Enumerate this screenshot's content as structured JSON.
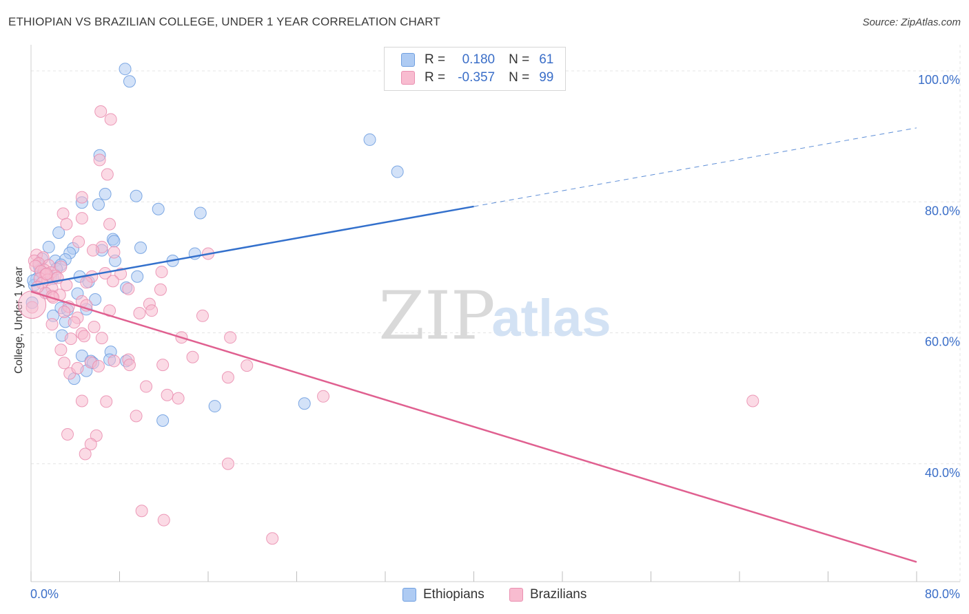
{
  "title": "ETHIOPIAN VS BRAZILIAN COLLEGE, UNDER 1 YEAR CORRELATION CHART",
  "source": "Source: ZipAtlas.com",
  "watermark": {
    "zip": "ZIP",
    "atlas": "atlas"
  },
  "legend": {
    "r_label": "R =",
    "n_label": "N =",
    "rows": [
      {
        "name": "Ethiopians",
        "r": "0.180",
        "n": "61",
        "fill": "#aecbf3",
        "stroke": "#6f9fe0"
      },
      {
        "name": "Brazilians",
        "r": "-0.357",
        "n": "99",
        "fill": "#f8bcd0",
        "stroke": "#ea8fb0"
      }
    ]
  },
  "chart_data": {
    "type": "scatter",
    "title": "ETHIOPIAN VS BRAZILIAN COLLEGE, UNDER 1 YEAR CORRELATION CHART",
    "xlabel": "",
    "ylabel": "College, Under 1 year",
    "xlim": [
      0,
      80
    ],
    "ylim": [
      22,
      104
    ],
    "x_tick_labels": [
      "0.0%",
      "80.0%"
    ],
    "y_ticks": [
      40,
      60,
      80,
      100
    ],
    "y_tick_labels": [
      "40.0%",
      "60.0%",
      "80.0%",
      "100.0%"
    ],
    "grid": true,
    "series": [
      {
        "name": "Ethiopians",
        "color": "#6f9fe0",
        "fill": "#aecbf3",
        "line_color": "#3370cc",
        "trend": {
          "x_start": 0,
          "y_start": 67.2,
          "x_solid_end": 40,
          "y_solid_end": 79.3,
          "x_end": 80,
          "y_end": 91.3
        },
        "points": [
          {
            "x": 8.5,
            "y": 100.3
          },
          {
            "x": 8.9,
            "y": 98.4
          },
          {
            "x": 30.6,
            "y": 89.5
          },
          {
            "x": 33.1,
            "y": 84.6
          },
          {
            "x": 6.2,
            "y": 87.1
          },
          {
            "x": 6.7,
            "y": 81.2
          },
          {
            "x": 9.5,
            "y": 80.9
          },
          {
            "x": 6.1,
            "y": 79.6
          },
          {
            "x": 4.6,
            "y": 79.9
          },
          {
            "x": 11.5,
            "y": 78.9
          },
          {
            "x": 15.3,
            "y": 78.3
          },
          {
            "x": 2.5,
            "y": 75.3
          },
          {
            "x": 7.4,
            "y": 74.3
          },
          {
            "x": 7.5,
            "y": 74.0
          },
          {
            "x": 1.6,
            "y": 73.1
          },
          {
            "x": 3.8,
            "y": 72.9
          },
          {
            "x": 9.9,
            "y": 73.0
          },
          {
            "x": 3.5,
            "y": 72.2
          },
          {
            "x": 6.4,
            "y": 72.6
          },
          {
            "x": 14.8,
            "y": 72.1
          },
          {
            "x": 1.0,
            "y": 71.3
          },
          {
            "x": 2.2,
            "y": 71.0
          },
          {
            "x": 3.1,
            "y": 71.2
          },
          {
            "x": 7.6,
            "y": 71.0
          },
          {
            "x": 12.8,
            "y": 71.0
          },
          {
            "x": 0.7,
            "y": 70.3
          },
          {
            "x": 2.7,
            "y": 70.4
          },
          {
            "x": 0.8,
            "y": 69.6
          },
          {
            "x": 1.1,
            "y": 69.2
          },
          {
            "x": 1.4,
            "y": 69.0
          },
          {
            "x": 4.4,
            "y": 68.6
          },
          {
            "x": 9.6,
            "y": 68.6
          },
          {
            "x": 0.5,
            "y": 68.2
          },
          {
            "x": 1.8,
            "y": 68.5
          },
          {
            "x": 2.0,
            "y": 68.3
          },
          {
            "x": 5.2,
            "y": 67.8
          },
          {
            "x": 8.6,
            "y": 66.9
          },
          {
            "x": 0.3,
            "y": 67.3
          },
          {
            "x": 4.2,
            "y": 66.0
          },
          {
            "x": 5.8,
            "y": 65.1
          },
          {
            "x": 2.7,
            "y": 63.8
          },
          {
            "x": 3.3,
            "y": 63.5
          },
          {
            "x": 5.0,
            "y": 63.6
          },
          {
            "x": 0.1,
            "y": 64.6
          },
          {
            "x": 2.0,
            "y": 62.6
          },
          {
            "x": 3.1,
            "y": 61.7
          },
          {
            "x": 2.8,
            "y": 59.6
          },
          {
            "x": 7.2,
            "y": 57.1
          },
          {
            "x": 4.6,
            "y": 56.5
          },
          {
            "x": 7.1,
            "y": 55.9
          },
          {
            "x": 5.4,
            "y": 55.7
          },
          {
            "x": 8.6,
            "y": 55.7
          },
          {
            "x": 5.6,
            "y": 55.4
          },
          {
            "x": 5.0,
            "y": 54.2
          },
          {
            "x": 3.9,
            "y": 53.0
          },
          {
            "x": 24.7,
            "y": 49.2
          },
          {
            "x": 16.6,
            "y": 48.8
          },
          {
            "x": 11.9,
            "y": 46.6
          },
          {
            "x": 0.2,
            "y": 68.0
          },
          {
            "x": 1.3,
            "y": 66.1
          },
          {
            "x": 2.3,
            "y": 69.8
          }
        ]
      },
      {
        "name": "Brazilians",
        "color": "#ea8fb0",
        "fill": "#f8bcd0",
        "line_color": "#e06090",
        "trend": {
          "x_start": 0,
          "y_start": 66.3,
          "x_end": 80,
          "y_end": 25.0
        },
        "points": [
          {
            "x": 6.3,
            "y": 93.8
          },
          {
            "x": 7.2,
            "y": 92.6
          },
          {
            "x": 6.2,
            "y": 86.4
          },
          {
            "x": 6.9,
            "y": 84.2
          },
          {
            "x": 4.6,
            "y": 80.7
          },
          {
            "x": 2.9,
            "y": 78.2
          },
          {
            "x": 4.6,
            "y": 77.5
          },
          {
            "x": 3.2,
            "y": 76.6
          },
          {
            "x": 7.1,
            "y": 76.6
          },
          {
            "x": 4.3,
            "y": 73.9
          },
          {
            "x": 6.4,
            "y": 73.1
          },
          {
            "x": 5.6,
            "y": 72.6
          },
          {
            "x": 7.5,
            "y": 72.3
          },
          {
            "x": 16.0,
            "y": 72.1
          },
          {
            "x": 0.5,
            "y": 71.9
          },
          {
            "x": 1.1,
            "y": 71.5
          },
          {
            "x": 0.3,
            "y": 71.0
          },
          {
            "x": 0.7,
            "y": 70.6
          },
          {
            "x": 1.6,
            "y": 70.3
          },
          {
            "x": 0.4,
            "y": 70.2
          },
          {
            "x": 2.7,
            "y": 70.1
          },
          {
            "x": 1.2,
            "y": 69.6
          },
          {
            "x": 0.9,
            "y": 69.4
          },
          {
            "x": 1.8,
            "y": 69.2
          },
          {
            "x": 6.7,
            "y": 69.1
          },
          {
            "x": 8.1,
            "y": 69.0
          },
          {
            "x": 11.8,
            "y": 69.3
          },
          {
            "x": 1.3,
            "y": 68.9
          },
          {
            "x": 2.2,
            "y": 68.7
          },
          {
            "x": 5.5,
            "y": 68.6
          },
          {
            "x": 0.8,
            "y": 68.3
          },
          {
            "x": 1.5,
            "y": 68.1
          },
          {
            "x": 7.4,
            "y": 67.9
          },
          {
            "x": 1.0,
            "y": 67.6
          },
          {
            "x": 3.2,
            "y": 67.3
          },
          {
            "x": 5.0,
            "y": 67.7
          },
          {
            "x": 1.9,
            "y": 66.8
          },
          {
            "x": 8.8,
            "y": 66.7
          },
          {
            "x": 11.7,
            "y": 66.6
          },
          {
            "x": 1.3,
            "y": 66.1
          },
          {
            "x": 1.9,
            "y": 65.6
          },
          {
            "x": 2.6,
            "y": 65.8
          },
          {
            "x": 2.0,
            "y": 65.4
          },
          {
            "x": 4.6,
            "y": 64.8
          },
          {
            "x": 10.7,
            "y": 64.4
          },
          {
            "x": 3.4,
            "y": 64.0
          },
          {
            "x": 5.0,
            "y": 64.2
          },
          {
            "x": 10.9,
            "y": 63.4
          },
          {
            "x": 3.0,
            "y": 63.2
          },
          {
            "x": 7.1,
            "y": 63.4
          },
          {
            "x": 9.8,
            "y": 63.0
          },
          {
            "x": 0.1,
            "y": 63.9
          },
          {
            "x": 15.5,
            "y": 62.6
          },
          {
            "x": 4.2,
            "y": 62.3
          },
          {
            "x": 1.9,
            "y": 61.3
          },
          {
            "x": 3.9,
            "y": 61.6
          },
          {
            "x": 5.7,
            "y": 60.9
          },
          {
            "x": 4.6,
            "y": 59.9
          },
          {
            "x": 4.8,
            "y": 59.5
          },
          {
            "x": 6.4,
            "y": 59.2
          },
          {
            "x": 13.6,
            "y": 59.3
          },
          {
            "x": 18.0,
            "y": 59.3
          },
          {
            "x": 3.6,
            "y": 59.1
          },
          {
            "x": 2.7,
            "y": 57.4
          },
          {
            "x": 14.6,
            "y": 56.3
          },
          {
            "x": 8.8,
            "y": 55.9
          },
          {
            "x": 3.0,
            "y": 55.4
          },
          {
            "x": 7.5,
            "y": 55.7
          },
          {
            "x": 5.4,
            "y": 55.5
          },
          {
            "x": 6.1,
            "y": 54.9
          },
          {
            "x": 8.9,
            "y": 55.1
          },
          {
            "x": 11.9,
            "y": 55.1
          },
          {
            "x": 19.5,
            "y": 55.0
          },
          {
            "x": 3.5,
            "y": 53.8
          },
          {
            "x": 4.2,
            "y": 54.6
          },
          {
            "x": 17.8,
            "y": 53.2
          },
          {
            "x": 10.4,
            "y": 51.8
          },
          {
            "x": 12.3,
            "y": 50.5
          },
          {
            "x": 13.3,
            "y": 50.0
          },
          {
            "x": 26.4,
            "y": 50.3
          },
          {
            "x": 4.6,
            "y": 49.6
          },
          {
            "x": 6.8,
            "y": 49.5
          },
          {
            "x": 65.2,
            "y": 49.6
          },
          {
            "x": 9.5,
            "y": 47.3
          },
          {
            "x": 3.3,
            "y": 44.5
          },
          {
            "x": 5.9,
            "y": 44.3
          },
          {
            "x": 5.4,
            "y": 43.0
          },
          {
            "x": 4.9,
            "y": 41.5
          },
          {
            "x": 17.8,
            "y": 40.0
          },
          {
            "x": 10.0,
            "y": 32.8
          },
          {
            "x": 12.0,
            "y": 31.4
          },
          {
            "x": 21.8,
            "y": 28.6
          },
          {
            "x": 1.4,
            "y": 69.0
          },
          {
            "x": 0.6,
            "y": 67.0
          },
          {
            "x": 2.4,
            "y": 68.4
          }
        ]
      }
    ]
  }
}
